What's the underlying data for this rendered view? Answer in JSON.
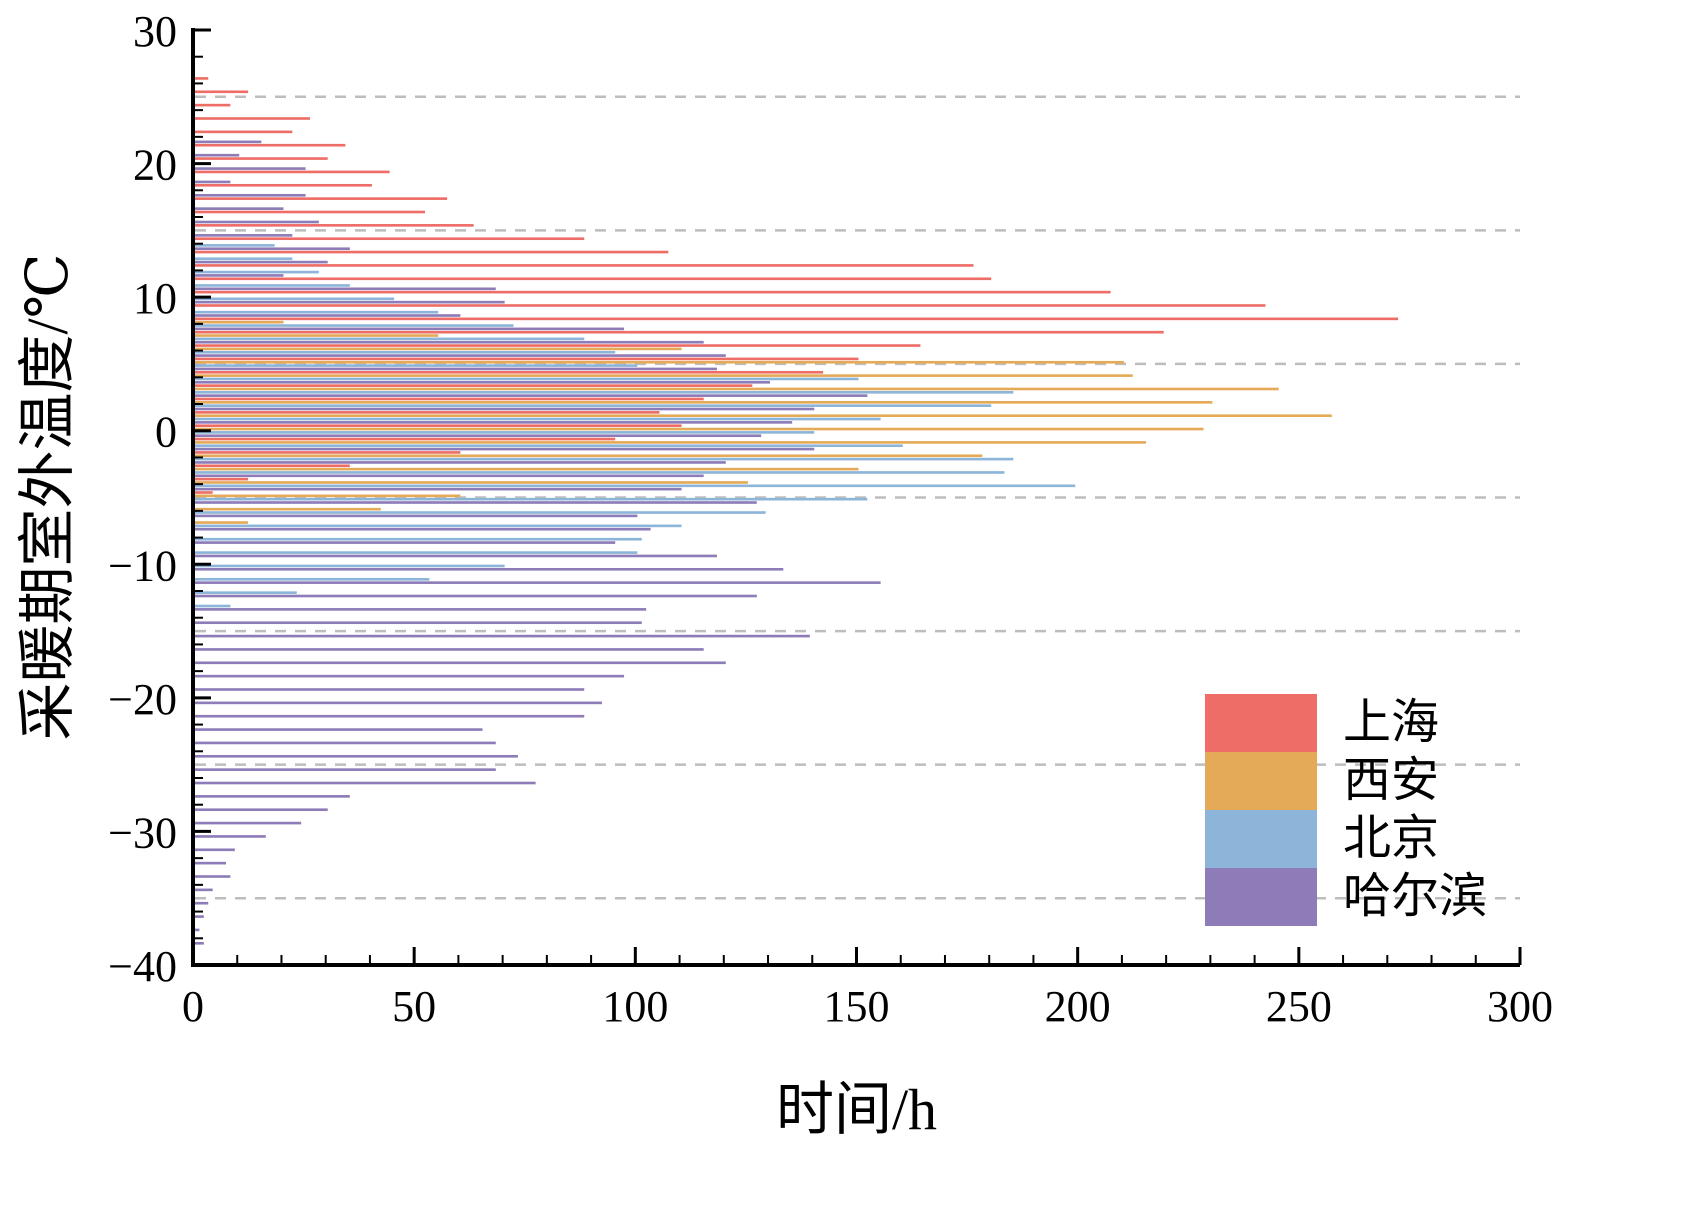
{
  "chart_data": {
    "type": "bar",
    "orientation": "horizontal",
    "title": "",
    "xlabel": "时间/h",
    "ylabel": "采暖期室外温度/℃",
    "xlim": [
      0,
      300
    ],
    "ylim": [
      -40,
      30
    ],
    "xticks": [
      0,
      50,
      100,
      150,
      200,
      250,
      300
    ],
    "yticks": [
      30,
      20,
      10,
      0,
      -10,
      -20,
      -30,
      -40
    ],
    "grid_y": [
      25,
      15,
      5,
      -5,
      -15,
      -25,
      -35
    ],
    "grid_color": "#bdbdbd",
    "legend_position": "lower right",
    "temps": [
      26,
      25,
      24,
      23,
      22,
      21,
      20,
      19,
      18,
      17,
      16,
      15,
      14,
      13,
      12,
      11,
      10,
      9,
      8,
      7,
      6,
      5,
      4,
      3,
      2,
      1,
      0,
      -1,
      -2,
      -3,
      -4,
      -5,
      -6,
      -7,
      -8,
      -9,
      -10,
      -11,
      -12,
      -13,
      -14,
      -15,
      -16,
      -17,
      -18,
      -19,
      -20,
      -21,
      -22,
      -23,
      -24,
      -25,
      -26,
      -27,
      -28,
      -29,
      -30,
      -31,
      -32,
      -33,
      -34,
      -35,
      -36,
      -37,
      -38
    ],
    "series": [
      {
        "name": "上海",
        "color": "#ee6e67",
        "values": [
          3,
          12,
          8,
          26,
          22,
          34,
          30,
          44,
          40,
          57,
          52,
          63,
          88,
          107,
          176,
          180,
          207,
          242,
          272,
          219,
          164,
          150,
          142,
          126,
          115,
          105,
          110,
          95,
          60,
          35,
          12,
          4,
          0,
          0,
          0,
          0,
          0,
          0,
          0,
          0,
          0,
          0,
          0,
          0,
          0,
          0,
          0,
          0,
          0,
          0,
          0,
          0,
          0,
          0,
          0,
          0,
          0,
          0,
          0,
          0,
          0,
          0,
          0,
          0,
          0
        ]
      },
      {
        "name": "西安",
        "color": "#e4aa58",
        "values": [
          0,
          0,
          0,
          0,
          0,
          0,
          0,
          0,
          0,
          0,
          0,
          0,
          0,
          0,
          0,
          0,
          0,
          0,
          20,
          55,
          110,
          210,
          212,
          245,
          230,
          257,
          228,
          215,
          178,
          150,
          125,
          60,
          42,
          12,
          0,
          0,
          0,
          0,
          0,
          0,
          0,
          0,
          0,
          0,
          0,
          0,
          0,
          0,
          0,
          0,
          0,
          0,
          0,
          0,
          0,
          0,
          0,
          0,
          0,
          0,
          0,
          0,
          0,
          0,
          0
        ]
      },
      {
        "name": "北京",
        "color": "#8cb5d9",
        "values": [
          0,
          0,
          0,
          0,
          0,
          0,
          0,
          0,
          0,
          0,
          0,
          0,
          18,
          22,
          28,
          35,
          45,
          55,
          72,
          88,
          95,
          100,
          150,
          185,
          180,
          155,
          140,
          160,
          185,
          183,
          199,
          152,
          129,
          110,
          101,
          100,
          70,
          53,
          23,
          8,
          0,
          0,
          0,
          0,
          0,
          0,
          0,
          0,
          0,
          0,
          0,
          0,
          0,
          0,
          0,
          0,
          0,
          0,
          0,
          0,
          0,
          0,
          0,
          0,
          0
        ]
      },
      {
        "name": "哈尔滨",
        "color": "#8e7cb8",
        "values": [
          0,
          0,
          0,
          0,
          15,
          10,
          25,
          8,
          25,
          20,
          28,
          22,
          35,
          30,
          20,
          68,
          70,
          60,
          97,
          115,
          120,
          118,
          130,
          152,
          140,
          135,
          128,
          140,
          120,
          115,
          110,
          127,
          100,
          103,
          95,
          118,
          133,
          155,
          127,
          102,
          101,
          139,
          115,
          120,
          97,
          88,
          92,
          88,
          65,
          68,
          73,
          68,
          77,
          35,
          30,
          24,
          16,
          9,
          7,
          8,
          4,
          3,
          2,
          1,
          2
        ]
      }
    ]
  }
}
